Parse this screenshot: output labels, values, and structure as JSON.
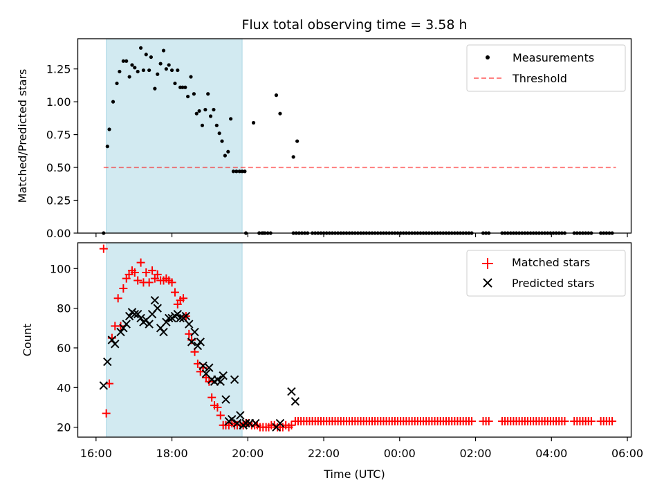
{
  "colors": {
    "background": "#ffffff",
    "shade": "#add8e6",
    "measurement": "#000000",
    "threshold": "#ff0000",
    "matched": "#ff0000",
    "predicted": "#000000"
  },
  "chart_data": [
    {
      "type": "scatter",
      "title": "Flux total observing time = 3.58 h",
      "xlabel": "",
      "ylabel": "Matched/Predicted stars",
      "x_unit": "hours since 16:00 UTC",
      "xlim": [
        -0.48,
        14.1
      ],
      "ylim": [
        0,
        1.48
      ],
      "yticks": [
        0.0,
        0.25,
        0.5,
        0.75,
        1.0,
        1.25
      ],
      "ytick_labels": [
        "0.00",
        "0.25",
        "0.50",
        "0.75",
        "1.00",
        "1.25"
      ],
      "xticks": [
        0,
        2,
        4,
        6,
        8,
        10,
        12,
        14
      ],
      "shaded_range": [
        0.27,
        3.85
      ],
      "legend": {
        "position": "upper right",
        "entries": [
          "Measurements",
          "Threshold"
        ]
      },
      "threshold": {
        "name": "Threshold",
        "value": 0.5,
        "x_range": [
          0.2,
          13.7
        ]
      },
      "series": [
        {
          "name": "Measurements",
          "marker": "dot",
          "x": [
            0.2,
            0.3,
            0.35,
            0.45,
            0.55,
            0.62,
            0.72,
            0.8,
            0.88,
            0.95,
            1.02,
            1.1,
            1.18,
            1.25,
            1.32,
            1.4,
            1.45,
            1.55,
            1.62,
            1.7,
            1.78,
            1.85,
            1.92,
            2.0,
            2.08,
            2.15,
            2.22,
            2.28,
            2.35,
            2.42,
            2.5,
            2.58,
            2.65,
            2.72,
            2.8,
            2.88,
            2.95,
            3.02,
            3.1,
            3.18,
            3.25,
            3.32,
            3.4,
            3.48,
            3.55,
            3.62,
            3.7,
            3.78,
            3.85,
            3.92,
            4.15,
            4.75,
            4.85,
            5.2,
            5.3,
            3.95,
            4.3,
            4.4
          ],
          "y": [
            0.0,
            0.66,
            0.79,
            1.0,
            1.14,
            1.23,
            1.31,
            1.31,
            1.19,
            1.28,
            1.26,
            1.23,
            1.41,
            1.24,
            1.36,
            1.24,
            1.34,
            1.1,
            1.21,
            1.29,
            1.39,
            1.25,
            1.28,
            1.24,
            1.14,
            1.24,
            1.11,
            1.11,
            1.11,
            1.04,
            1.19,
            1.06,
            0.91,
            0.93,
            0.82,
            0.94,
            1.06,
            0.89,
            0.94,
            0.82,
            0.76,
            0.7,
            0.59,
            0.62,
            0.87,
            0.47,
            0.47,
            0.47,
            0.47,
            0.47,
            0.84,
            1.05,
            0.91,
            0.58,
            0.7,
            0.0,
            0.0,
            0.0
          ],
          "zero_clusters": [
            [
              4.3,
              4.6
            ],
            [
              5.2,
              5.6
            ],
            [
              5.7,
              9.95
            ],
            [
              10.2,
              10.4
            ],
            [
              10.7,
              12.4
            ],
            [
              12.6,
              13.05
            ],
            [
              13.3,
              13.65
            ]
          ]
        }
      ]
    },
    {
      "type": "scatter",
      "title": "",
      "xlabel": "Time (UTC)",
      "ylabel": "Count",
      "x_unit": "hours since 16:00 UTC",
      "xlim": [
        -0.48,
        14.1
      ],
      "ylim": [
        15,
        113
      ],
      "yticks": [
        20,
        40,
        60,
        80,
        100
      ],
      "ytick_labels": [
        "20",
        "40",
        "60",
        "80",
        "100"
      ],
      "xticks": [
        0,
        2,
        4,
        6,
        8,
        10,
        12,
        14
      ],
      "xtick_labels": [
        "16:00",
        "18:00",
        "20:00",
        "22:00",
        "00:00",
        "02:00",
        "04:00",
        "06:00"
      ],
      "shaded_range": [
        0.27,
        3.85
      ],
      "legend": {
        "position": "upper right",
        "entries": [
          "Matched stars",
          "Predicted stars"
        ]
      },
      "series": [
        {
          "name": "Matched stars",
          "marker": "plus",
          "x": [
            0.2,
            0.27,
            0.35,
            0.42,
            0.5,
            0.58,
            0.65,
            0.72,
            0.8,
            0.87,
            0.95,
            1.02,
            1.1,
            1.18,
            1.25,
            1.32,
            1.4,
            1.48,
            1.55,
            1.62,
            1.7,
            1.78,
            1.85,
            1.92,
            2.0,
            2.08,
            2.15,
            2.22,
            2.3,
            2.37,
            2.45,
            2.52,
            2.6,
            2.68,
            2.75,
            2.82,
            2.9,
            2.98,
            3.05,
            3.12,
            3.2,
            3.28,
            3.35,
            3.42,
            3.5,
            3.58,
            3.65,
            3.72,
            3.8,
            3.88,
            3.95,
            4.02,
            4.1,
            4.18,
            4.25,
            4.32,
            4.4,
            4.48,
            4.55,
            4.62,
            4.7,
            4.78,
            4.85,
            4.92,
            5.0,
            5.08,
            5.15
          ],
          "y": [
            110,
            27,
            42,
            65,
            71,
            85,
            71,
            90,
            95,
            97,
            99,
            98,
            94,
            103,
            93,
            98,
            93,
            99,
            95,
            97,
            94,
            94,
            95,
            94,
            93,
            88,
            82,
            84,
            85,
            76,
            67,
            64,
            58,
            52,
            48,
            50,
            45,
            43,
            35,
            31,
            30,
            26,
            21,
            21,
            21,
            22,
            21,
            21,
            21,
            21,
            22,
            22,
            21,
            21,
            21,
            20,
            20,
            20,
            20,
            21,
            21,
            20,
            20,
            20,
            21,
            20,
            21
          ],
          "flat_clusters": [
            {
              "x_range": [
                5.25,
                9.95
              ],
              "value": 23
            },
            {
              "x_range": [
                10.2,
                10.4
              ],
              "value": 23
            },
            {
              "x_range": [
                10.7,
                12.4
              ],
              "value": 23
            },
            {
              "x_range": [
                12.6,
                13.05
              ],
              "value": 23
            },
            {
              "x_range": [
                13.3,
                13.65
              ],
              "value": 23
            }
          ]
        },
        {
          "name": "Predicted stars",
          "marker": "x",
          "x": [
            0.2,
            0.3,
            0.42,
            0.5,
            0.65,
            0.72,
            0.8,
            0.88,
            0.95,
            1.02,
            1.1,
            1.18,
            1.25,
            1.32,
            1.4,
            1.48,
            1.55,
            1.62,
            1.7,
            1.78,
            1.85,
            1.92,
            2.0,
            2.08,
            2.15,
            2.22,
            2.3,
            2.37,
            2.45,
            2.52,
            2.6,
            2.68,
            2.75,
            2.82,
            2.9,
            2.98,
            3.05,
            3.12,
            3.2,
            3.28,
            3.35,
            3.42,
            3.5,
            3.58,
            3.65,
            3.72,
            3.8,
            3.88,
            3.95,
            4.05,
            4.2,
            4.75,
            4.85,
            5.15,
            5.25
          ],
          "y": [
            41,
            53,
            64,
            62,
            68,
            70,
            72,
            76,
            78,
            77,
            77,
            75,
            73,
            74,
            72,
            77,
            84,
            80,
            70,
            68,
            73,
            75,
            75,
            76,
            77,
            75,
            75,
            76,
            72,
            63,
            68,
            61,
            63,
            51,
            47,
            50,
            44,
            43,
            44,
            43,
            46,
            34,
            23,
            24,
            44,
            22,
            26,
            21,
            22,
            22,
            22,
            20,
            22,
            38,
            33
          ]
        }
      ]
    }
  ]
}
